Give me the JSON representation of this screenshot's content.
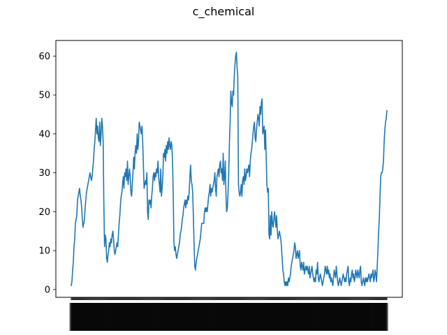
{
  "title": "c_chemical",
  "chart_data": {
    "type": "line",
    "title": "c_chemical",
    "xlabel": "",
    "ylabel": "",
    "ylim": [
      -2,
      64
    ],
    "y_ticks": [
      0,
      10,
      20,
      30,
      40,
      50,
      60
    ],
    "grid": false,
    "line_color": "#1f77b4",
    "x_tick_labels_note": "x-axis tick labels are densely overlapping and illegible",
    "series": [
      {
        "values": [
          1,
          2,
          5,
          7,
          11,
          13,
          17,
          18,
          19,
          23,
          24,
          25,
          26,
          24,
          23,
          21,
          18,
          16,
          17,
          18,
          21,
          23,
          25,
          26,
          27,
          28,
          29,
          30,
          29,
          28,
          29,
          31,
          33,
          36,
          38,
          41,
          44,
          40,
          42,
          39,
          38,
          43,
          37,
          40,
          44,
          42,
          38,
          22,
          11,
          14,
          13,
          8,
          7,
          9,
          10,
          12,
          11,
          13,
          12,
          14,
          15,
          13,
          10,
          9,
          10,
          11,
          12,
          11,
          14,
          17,
          19,
          22,
          24,
          25,
          27,
          29,
          26,
          30,
          29,
          31,
          28,
          33,
          27,
          29,
          31,
          29,
          25,
          24,
          27,
          30,
          34,
          31,
          35,
          37,
          35,
          40,
          36,
          38,
          43,
          42,
          41,
          40,
          42,
          38,
          32,
          26,
          27,
          28,
          27,
          30,
          20,
          18,
          23,
          22,
          23,
          21,
          24,
          26,
          29,
          30,
          28,
          30,
          29,
          31,
          30,
          33,
          29,
          27,
          25,
          31,
          24,
          26,
          29,
          35,
          34,
          36,
          33,
          37,
          35,
          38,
          36,
          39,
          37,
          36,
          38,
          37,
          33,
          24,
          12,
          10,
          11,
          9,
          8,
          9,
          10,
          11,
          12,
          14,
          15,
          16,
          18,
          19,
          21,
          22,
          23,
          21,
          23,
          22,
          24,
          23,
          25,
          29,
          32,
          28,
          27,
          25,
          19,
          12,
          6,
          5,
          7,
          8,
          9,
          10,
          11,
          12,
          13,
          15,
          17,
          17,
          17,
          17,
          20,
          21,
          20,
          21,
          20,
          22,
          24,
          25,
          27,
          24,
          26,
          25,
          26,
          27,
          28,
          30,
          26,
          24,
          29,
          30,
          31,
          29,
          32,
          33,
          30,
          31,
          28,
          35,
          27,
          29,
          33,
          24,
          20,
          21,
          25,
          30,
          38,
          43,
          51,
          48,
          47,
          51,
          50,
          55,
          58,
          60,
          61,
          57,
          55,
          27,
          25,
          24,
          25,
          27,
          24,
          28,
          29,
          27,
          31,
          28,
          29,
          31,
          30,
          31,
          32,
          29,
          33,
          35,
          36,
          38,
          40,
          42,
          43,
          39,
          38,
          41,
          43,
          45,
          44,
          42,
          47,
          45,
          48,
          49,
          40,
          41,
          42,
          36,
          41,
          34,
          27,
          25,
          26,
          14,
          13,
          19,
          14,
          20,
          17,
          16,
          18,
          20,
          18,
          16,
          19,
          15,
          13,
          14,
          15,
          14,
          13,
          11,
          8,
          5,
          4,
          2,
          1,
          2,
          1,
          2,
          1,
          3,
          2,
          3,
          4,
          6,
          7,
          8,
          9,
          10,
          12,
          11,
          8,
          9,
          10,
          8,
          9,
          10,
          6,
          5,
          7,
          6,
          5,
          7,
          4,
          5,
          6,
          5,
          6,
          5,
          4,
          6,
          3,
          4,
          5,
          6,
          4,
          3,
          2,
          3,
          2,
          5,
          4,
          7,
          3,
          2,
          3,
          4,
          3,
          2,
          1,
          2,
          3,
          4,
          6,
          5,
          4,
          6,
          4,
          5,
          3,
          4,
          2,
          3,
          2,
          1,
          3,
          5,
          4,
          3,
          6,
          4,
          2,
          1,
          2,
          3,
          2,
          1,
          2,
          3,
          4,
          3,
          2,
          3,
          2,
          4,
          5,
          6,
          2,
          1,
          3,
          2,
          4,
          5,
          3,
          4,
          2,
          3,
          5,
          4,
          3,
          5,
          4,
          3,
          5,
          6,
          2,
          1,
          2,
          3,
          2,
          1,
          3,
          2,
          3,
          2,
          3,
          4,
          3,
          2,
          4,
          3,
          4,
          5,
          2,
          3,
          5,
          4,
          2,
          6,
          10,
          15,
          18,
          24,
          29,
          30,
          30,
          31,
          33,
          38,
          41,
          43,
          44,
          46
        ]
      }
    ]
  }
}
